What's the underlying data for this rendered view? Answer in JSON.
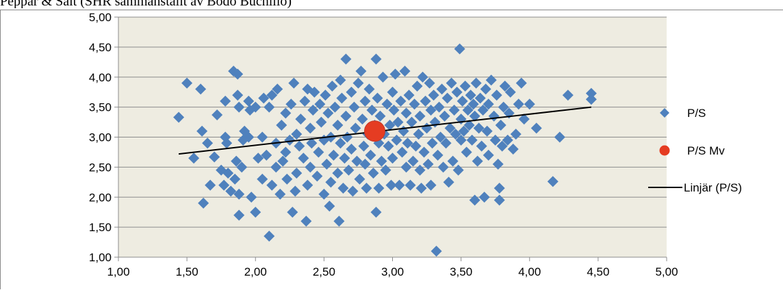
{
  "header": {
    "text": "Peppar & Salt (SHR sammanställt av Bodo Buchillo)"
  },
  "colors": {
    "plot_bg": "#EEECE1",
    "grid": "#8C8C8C",
    "series_ps": "#4F81BD",
    "series_ps_mv": "#E53C22",
    "trendline": "#000000"
  },
  "legend": {
    "items": [
      {
        "label": "P/S",
        "symbol": "diamond"
      },
      {
        "label": "P/S Mv",
        "symbol": "circle"
      },
      {
        "label": "Linjär (P/S)",
        "symbol": "line"
      }
    ]
  },
  "chart_data": {
    "type": "scatter",
    "title": "",
    "xlabel": "",
    "ylabel": "",
    "xlim": [
      1.0,
      5.0
    ],
    "ylim": [
      1.0,
      5.0
    ],
    "grid": "horizontal",
    "legend_position": "right",
    "x_ticks": [
      "1,00",
      "1,50",
      "2,00",
      "2,50",
      "3,00",
      "3,50",
      "4,00",
      "4,50",
      "5,00"
    ],
    "y_ticks": [
      "1,00",
      "1,50",
      "2,00",
      "2,50",
      "3,00",
      "3,50",
      "4,00",
      "4,50",
      "5,00"
    ],
    "series": [
      {
        "name": "P/S",
        "marker": "diamond",
        "points": [
          [
            1.44,
            3.33
          ],
          [
            1.5,
            3.9
          ],
          [
            1.55,
            2.65
          ],
          [
            1.6,
            3.8
          ],
          [
            1.61,
            3.1
          ],
          [
            1.62,
            1.9
          ],
          [
            1.65,
            2.9
          ],
          [
            1.67,
            2.2
          ],
          [
            1.7,
            2.67
          ],
          [
            1.72,
            3.37
          ],
          [
            1.75,
            2.45
          ],
          [
            1.77,
            2.2
          ],
          [
            1.78,
            3.6
          ],
          [
            1.78,
            3.0
          ],
          [
            1.79,
            2.9
          ],
          [
            1.8,
            2.4
          ],
          [
            1.82,
            2.1
          ],
          [
            1.84,
            4.1
          ],
          [
            1.85,
            2.3
          ],
          [
            1.86,
            2.6
          ],
          [
            1.87,
            4.05
          ],
          [
            1.87,
            3.7
          ],
          [
            1.88,
            1.7
          ],
          [
            1.88,
            2.05
          ],
          [
            1.88,
            3.5
          ],
          [
            1.9,
            2.5
          ],
          [
            1.91,
            2.95
          ],
          [
            1.92,
            3.1
          ],
          [
            1.95,
            3.6
          ],
          [
            1.95,
            3.0
          ],
          [
            1.96,
            3.45
          ],
          [
            1.97,
            2.0
          ],
          [
            2.0,
            1.75
          ],
          [
            2.0,
            3.5
          ],
          [
            2.02,
            2.65
          ],
          [
            2.05,
            3.0
          ],
          [
            2.05,
            2.3
          ],
          [
            2.06,
            3.65
          ],
          [
            2.08,
            2.7
          ],
          [
            2.1,
            1.35
          ],
          [
            2.1,
            3.5
          ],
          [
            2.12,
            3.7
          ],
          [
            2.12,
            2.2
          ],
          [
            2.15,
            2.5
          ],
          [
            2.15,
            2.9
          ],
          [
            2.16,
            3.8
          ],
          [
            2.18,
            2.05
          ],
          [
            2.19,
            3.2
          ],
          [
            2.2,
            2.6
          ],
          [
            2.22,
            3.4
          ],
          [
            2.22,
            2.75
          ],
          [
            2.23,
            2.3
          ],
          [
            2.25,
            2.95
          ],
          [
            2.26,
            3.55
          ],
          [
            2.27,
            1.75
          ],
          [
            2.28,
            3.9
          ],
          [
            2.29,
            2.1
          ],
          [
            2.3,
            3.05
          ],
          [
            2.3,
            2.4
          ],
          [
            2.32,
            2.85
          ],
          [
            2.33,
            3.3
          ],
          [
            2.35,
            2.65
          ],
          [
            2.36,
            3.6
          ],
          [
            2.37,
            1.6
          ],
          [
            2.38,
            2.2
          ],
          [
            2.38,
            3.8
          ],
          [
            2.4,
            2.5
          ],
          [
            2.4,
            3.15
          ],
          [
            2.41,
            2.9
          ],
          [
            2.42,
            3.45
          ],
          [
            2.43,
            3.75
          ],
          [
            2.45,
            2.35
          ],
          [
            2.46,
            2.75
          ],
          [
            2.47,
            3.55
          ],
          [
            2.48,
            3.25
          ],
          [
            2.5,
            2.05
          ],
          [
            2.5,
            2.95
          ],
          [
            2.51,
            3.7
          ],
          [
            2.52,
            2.55
          ],
          [
            2.53,
            3.4
          ],
          [
            2.54,
            1.85
          ],
          [
            2.55,
            2.25
          ],
          [
            2.55,
            3.0
          ],
          [
            2.56,
            3.85
          ],
          [
            2.57,
            2.7
          ],
          [
            2.58,
            3.5
          ],
          [
            2.6,
            2.4
          ],
          [
            2.6,
            3.2
          ],
          [
            2.61,
            1.6
          ],
          [
            2.62,
            2.9
          ],
          [
            2.62,
            3.95
          ],
          [
            2.63,
            3.65
          ],
          [
            2.64,
            2.15
          ],
          [
            2.65,
            2.65
          ],
          [
            2.66,
            3.35
          ],
          [
            2.66,
            4.3
          ],
          [
            2.67,
            3.0
          ],
          [
            2.68,
            2.45
          ],
          [
            2.7,
            3.75
          ],
          [
            2.7,
            2.8
          ],
          [
            2.71,
            2.1
          ],
          [
            2.72,
            3.5
          ],
          [
            2.73,
            3.15
          ],
          [
            2.74,
            2.6
          ],
          [
            2.75,
            3.9
          ],
          [
            2.76,
            2.3
          ],
          [
            2.77,
            4.1
          ],
          [
            2.78,
            3.3
          ],
          [
            2.79,
            2.85
          ],
          [
            2.8,
            3.6
          ],
          [
            2.8,
            2.55
          ],
          [
            2.81,
            2.15
          ],
          [
            2.82,
            3.05
          ],
          [
            2.83,
            3.8
          ],
          [
            2.84,
            2.7
          ],
          [
            2.85,
            3.45
          ],
          [
            2.86,
            2.4
          ],
          [
            2.87,
            3.2
          ],
          [
            2.88,
            4.3
          ],
          [
            2.88,
            1.75
          ],
          [
            2.89,
            3.65
          ],
          [
            2.9,
            2.9
          ],
          [
            2.9,
            2.15
          ],
          [
            2.91,
            3.35
          ],
          [
            2.92,
            2.6
          ],
          [
            2.93,
            4.0
          ],
          [
            2.94,
            3.05
          ],
          [
            2.95,
            2.45
          ],
          [
            2.96,
            3.55
          ],
          [
            2.97,
            2.85
          ],
          [
            2.98,
            3.2
          ],
          [
            2.99,
            2.2
          ],
          [
            3.0,
            3.75
          ],
          [
            3.0,
            2.65
          ],
          [
            3.01,
            3.45
          ],
          [
            3.02,
            4.05
          ],
          [
            3.03,
            2.95
          ],
          [
            3.04,
            3.25
          ],
          [
            3.05,
            2.2
          ],
          [
            3.06,
            3.6
          ],
          [
            3.07,
            2.75
          ],
          [
            3.08,
            3.1
          ],
          [
            3.09,
            4.1
          ],
          [
            3.1,
            2.5
          ],
          [
            3.1,
            3.4
          ],
          [
            3.11,
            2.9
          ],
          [
            3.12,
            3.7
          ],
          [
            3.13,
            2.2
          ],
          [
            3.14,
            3.25
          ],
          [
            3.15,
            2.6
          ],
          [
            3.16,
            3.55
          ],
          [
            3.17,
            2.85
          ],
          [
            3.18,
            3.85
          ],
          [
            3.19,
            3.05
          ],
          [
            3.2,
            2.45
          ],
          [
            3.2,
            3.35
          ],
          [
            3.21,
            2.15
          ],
          [
            3.22,
            4.0
          ],
          [
            3.23,
            2.75
          ],
          [
            3.24,
            3.6
          ],
          [
            3.25,
            3.15
          ],
          [
            3.26,
            2.55
          ],
          [
            3.27,
            3.9
          ],
          [
            3.28,
            2.2
          ],
          [
            3.28,
            3.45
          ],
          [
            3.29,
            2.9
          ],
          [
            3.3,
            3.7
          ],
          [
            3.31,
            3.25
          ],
          [
            3.32,
            1.1
          ],
          [
            3.33,
            2.7
          ],
          [
            3.34,
            3.5
          ],
          [
            3.35,
            3.0
          ],
          [
            3.36,
            3.8
          ],
          [
            3.37,
            2.5
          ],
          [
            3.38,
            3.35
          ],
          [
            3.39,
            2.9
          ],
          [
            3.4,
            3.65
          ],
          [
            3.41,
            2.25
          ],
          [
            3.42,
            3.15
          ],
          [
            3.43,
            3.9
          ],
          [
            3.44,
            2.6
          ],
          [
            3.45,
            3.45
          ],
          [
            3.46,
            3.05
          ],
          [
            3.47,
            3.75
          ],
          [
            3.48,
            2.45
          ],
          [
            3.49,
            4.47
          ],
          [
            3.5,
            3.3
          ],
          [
            3.5,
            2.95
          ],
          [
            3.51,
            3.6
          ],
          [
            3.52,
            3.1
          ],
          [
            3.53,
            3.85
          ],
          [
            3.54,
            2.75
          ],
          [
            3.55,
            3.45
          ],
          [
            3.56,
            3.2
          ],
          [
            3.57,
            3.7
          ],
          [
            3.58,
            2.95
          ],
          [
            3.59,
            3.55
          ],
          [
            3.6,
            1.95
          ],
          [
            3.6,
            3.35
          ],
          [
            3.61,
            3.9
          ],
          [
            3.62,
            2.6
          ],
          [
            3.63,
            3.15
          ],
          [
            3.64,
            3.65
          ],
          [
            3.65,
            2.85
          ],
          [
            3.66,
            3.45
          ],
          [
            3.67,
            2.0
          ],
          [
            3.68,
            3.8
          ],
          [
            3.69,
            3.1
          ],
          [
            3.7,
            2.7
          ],
          [
            3.7,
            3.55
          ],
          [
            3.72,
            3.95
          ],
          [
            3.74,
            3.35
          ],
          [
            3.75,
            2.95
          ],
          [
            3.76,
            3.7
          ],
          [
            3.77,
            2.55
          ],
          [
            3.78,
            1.95
          ],
          [
            3.78,
            2.15
          ],
          [
            3.79,
            3.2
          ],
          [
            3.8,
            2.85
          ],
          [
            3.81,
            3.5
          ],
          [
            3.82,
            3.85
          ],
          [
            3.84,
            2.95
          ],
          [
            3.85,
            3.4
          ],
          [
            3.86,
            3.75
          ],
          [
            3.88,
            2.8
          ],
          [
            3.9,
            3.05
          ],
          [
            3.92,
            3.55
          ],
          [
            3.94,
            3.9
          ],
          [
            3.96,
            3.3
          ],
          [
            4.0,
            3.55
          ],
          [
            4.05,
            3.15
          ],
          [
            4.17,
            2.26
          ],
          [
            4.22,
            3.0
          ],
          [
            4.28,
            3.7
          ],
          [
            4.45,
            3.73
          ],
          [
            4.45,
            3.63
          ]
        ]
      },
      {
        "name": "P/S Mv",
        "marker": "circle",
        "points": [
          [
            2.87,
            3.1
          ]
        ]
      },
      {
        "name": "Linjär (P/S)",
        "marker": "line",
        "points": [
          [
            1.44,
            2.72
          ],
          [
            4.45,
            3.5
          ]
        ]
      }
    ]
  }
}
